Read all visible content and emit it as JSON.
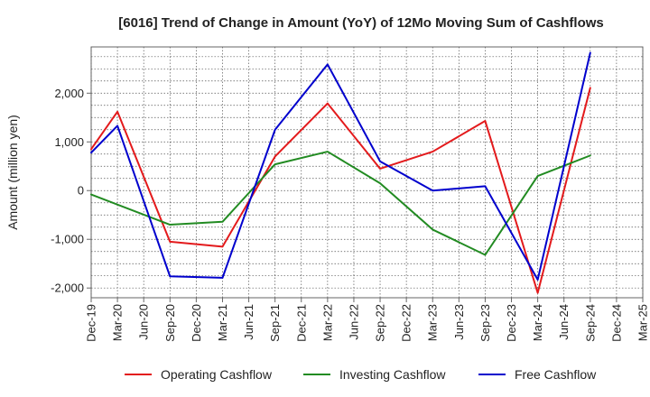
{
  "chart_data": {
    "type": "line",
    "title": "[6016]  Trend of Change in Amount (YoY) of 12Mo Moving Sum of Cashflows",
    "xlabel": "",
    "ylabel": "Amount (million yen)",
    "ylim": [
      -2200,
      2950
    ],
    "yticks": [
      -2000,
      -1000,
      0,
      1000,
      2000
    ],
    "ytick_labels": [
      "-2,000",
      "-1,000",
      "0",
      "1,000",
      "2,000"
    ],
    "categories": [
      "Dec-19",
      "Mar-20",
      "Jun-20",
      "Sep-20",
      "Dec-20",
      "Mar-21",
      "Jun-21",
      "Sep-21",
      "Dec-21",
      "Mar-22",
      "Jun-22",
      "Sep-22",
      "Dec-22",
      "Mar-23",
      "Jun-23",
      "Sep-23",
      "Dec-23",
      "Mar-24",
      "Jun-24",
      "Sep-24",
      "Dec-24",
      "Mar-25"
    ],
    "grid": true,
    "legend_position": "bottom",
    "series": [
      {
        "name": "Operating Cashflow",
        "color": "#e31a1c",
        "points": [
          {
            "x": "Dec-19",
            "y": 850
          },
          {
            "x": "Mar-20",
            "y": 1620
          },
          {
            "x": "Sep-20",
            "y": -1050
          },
          {
            "x": "Mar-21",
            "y": -1150
          },
          {
            "x": "Sep-21",
            "y": 700
          },
          {
            "x": "Mar-22",
            "y": 1790
          },
          {
            "x": "Sep-22",
            "y": 450
          },
          {
            "x": "Mar-23",
            "y": 800
          },
          {
            "x": "Sep-23",
            "y": 1430
          },
          {
            "x": "Mar-24",
            "y": -2100
          },
          {
            "x": "Sep-24",
            "y": 2110
          }
        ]
      },
      {
        "name": "Investing Cashflow",
        "color": "#228b22",
        "points": [
          {
            "x": "Dec-19",
            "y": -80
          },
          {
            "x": "Sep-20",
            "y": -700
          },
          {
            "x": "Mar-21",
            "y": -640
          },
          {
            "x": "Sep-21",
            "y": 540
          },
          {
            "x": "Mar-22",
            "y": 800
          },
          {
            "x": "Sep-22",
            "y": 150
          },
          {
            "x": "Mar-23",
            "y": -800
          },
          {
            "x": "Sep-23",
            "y": -1320
          },
          {
            "x": "Mar-24",
            "y": 300
          },
          {
            "x": "Sep-24",
            "y": 720
          }
        ]
      },
      {
        "name": "Free Cashflow",
        "color": "#0000cd",
        "points": [
          {
            "x": "Dec-19",
            "y": 780
          },
          {
            "x": "Mar-20",
            "y": 1330
          },
          {
            "x": "Sep-20",
            "y": -1760
          },
          {
            "x": "Mar-21",
            "y": -1790
          },
          {
            "x": "Sep-21",
            "y": 1250
          },
          {
            "x": "Mar-22",
            "y": 2590
          },
          {
            "x": "Sep-22",
            "y": 600
          },
          {
            "x": "Mar-23",
            "y": 0
          },
          {
            "x": "Sep-23",
            "y": 90
          },
          {
            "x": "Mar-24",
            "y": -1830
          },
          {
            "x": "Sep-24",
            "y": 2830
          }
        ]
      }
    ]
  },
  "colors": {
    "plot_background": "#ffffff",
    "grid": "#555555",
    "frame": "#666666",
    "text": "#222222"
  }
}
